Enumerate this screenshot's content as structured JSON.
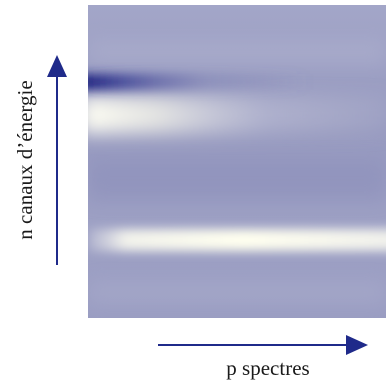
{
  "axes": {
    "vertical_label": "n canaux d’énergie",
    "horizontal_label": "p spectres"
  }
}
